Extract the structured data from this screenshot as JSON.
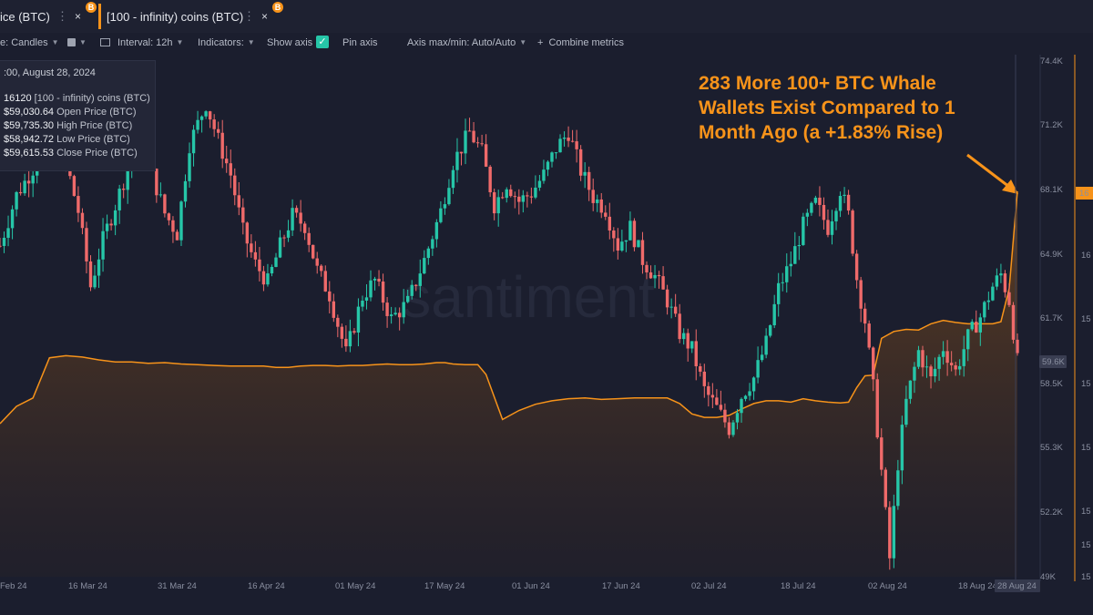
{
  "tabs": [
    {
      "label": "ice (BTC)",
      "dots": "⋮",
      "close": "×",
      "badge": "B"
    },
    {
      "label": "[100 - infinity) coins (BTC)",
      "dots": "⋮",
      "close": "×",
      "badge": "B"
    }
  ],
  "toolbar": {
    "style_label": "e: Candles",
    "interval_label": "Interval: 12h",
    "indicators_label": "Indicators:",
    "show_axis_label": "Show axis",
    "pin_axis_label": "Pin axis",
    "axis_maxmin_label": "Axis max/min: Auto/Auto",
    "combine_label": "Combine metrics",
    "checkmark": "✓"
  },
  "tooltip": {
    "date": ":00, August 28, 2024",
    "rows": [
      {
        "value": "16120",
        "label": "[100 - infinity) coins (BTC)"
      },
      {
        "value": "$59,030.64",
        "label": "Open Price (BTC)"
      },
      {
        "value": "$59,735.30",
        "label": "High Price (BTC)"
      },
      {
        "value": "$58,942.72",
        "label": "Low Price (BTC)"
      },
      {
        "value": "$59,615.53",
        "label": "Close Price (BTC)"
      }
    ]
  },
  "annotation": {
    "lines": [
      "283 More 100+ BTC Whale",
      "Wallets Exist Compared to 1",
      "Month Ago (a +1.83% Rise)"
    ]
  },
  "watermark": "santiment",
  "chart_data": {
    "type": "candlestick+area",
    "title": "",
    "x_ticks": [
      "Feb 24",
      "16 Mar 24",
      "31 Mar 24",
      "16 Apr 24",
      "01 May 24",
      "17 May 24",
      "01 Jun 24",
      "17 Jun 24",
      "02 Jul 24",
      "18 Jul 24",
      "02 Aug 24",
      "18 Aug 24",
      "28 Aug 24"
    ],
    "price_axis": {
      "ticks": [
        "74.4K",
        "71.2K",
        "68.1K",
        "64.9K",
        "61.7K",
        "58.5K",
        "55.3K",
        "52.2K",
        "49K"
      ],
      "range": [
        49000,
        74400
      ],
      "current_label": "59.6K"
    },
    "holders_axis": {
      "ticks": [
        "16",
        "15",
        "15",
        "15",
        "15",
        "15",
        "15",
        "15"
      ],
      "current_label": "16"
    },
    "series": [
      {
        "name": "Price (BTC)",
        "type": "candlestick",
        "colors": {
          "up": "#26c6a8",
          "down": "#ef6a6a"
        },
        "close_path": [
          [
            0,
            65300
          ],
          [
            4,
            67800
          ],
          [
            8,
            69100
          ],
          [
            12,
            71000
          ],
          [
            16,
            69400
          ],
          [
            19,
            67000
          ],
          [
            22,
            63300
          ],
          [
            25,
            65600
          ],
          [
            28,
            67300
          ],
          [
            31,
            69100
          ],
          [
            34,
            70600
          ],
          [
            37,
            68800
          ],
          [
            40,
            66900
          ],
          [
            43,
            65900
          ],
          [
            46,
            70300
          ],
          [
            50,
            72300
          ],
          [
            53,
            70500
          ],
          [
            56,
            68800
          ],
          [
            59,
            66000
          ],
          [
            62,
            64400
          ],
          [
            65,
            63500
          ],
          [
            68,
            65300
          ],
          [
            71,
            66800
          ],
          [
            74,
            66300
          ],
          [
            77,
            64100
          ],
          [
            80,
            62900
          ],
          [
            84,
            60000
          ],
          [
            88,
            62800
          ],
          [
            91,
            63600
          ],
          [
            95,
            61700
          ],
          [
            99,
            62500
          ],
          [
            103,
            64600
          ],
          [
            107,
            67000
          ],
          [
            110,
            69400
          ],
          [
            114,
            70900
          ],
          [
            117,
            69900
          ],
          [
            120,
            67300
          ],
          [
            123,
            68400
          ],
          [
            126,
            67500
          ],
          [
            129,
            67900
          ],
          [
            132,
            68800
          ],
          [
            135,
            70100
          ],
          [
            138,
            70900
          ],
          [
            141,
            69000
          ],
          [
            144,
            67700
          ],
          [
            147,
            67100
          ],
          [
            150,
            65300
          ],
          [
            153,
            66200
          ],
          [
            156,
            64600
          ],
          [
            159,
            63800
          ],
          [
            162,
            62600
          ],
          [
            165,
            61000
          ],
          [
            168,
            60200
          ],
          [
            171,
            58200
          ],
          [
            174,
            57300
          ],
          [
            177,
            56300
          ],
          [
            180,
            57900
          ],
          [
            183,
            58800
          ],
          [
            186,
            60500
          ],
          [
            189,
            63200
          ],
          [
            192,
            64500
          ],
          [
            195,
            66300
          ],
          [
            198,
            67400
          ],
          [
            201,
            66200
          ],
          [
            204,
            68100
          ],
          [
            206,
            66800
          ],
          [
            208,
            63700
          ],
          [
            210,
            61600
          ],
          [
            212,
            58300
          ],
          [
            214,
            54200
          ],
          [
            216,
            49900
          ],
          [
            218,
            54600
          ],
          [
            220,
            57600
          ],
          [
            223,
            60100
          ],
          [
            226,
            58700
          ],
          [
            229,
            60300
          ],
          [
            232,
            59100
          ],
          [
            235,
            60800
          ],
          [
            238,
            61800
          ],
          [
            241,
            63300
          ],
          [
            243,
            63900
          ],
          [
            245,
            62600
          ],
          [
            247,
            59600
          ]
        ]
      },
      {
        "name": "[100 - infinity) coins (BTC)",
        "type": "area",
        "color": "#f7931a",
        "close_path": [
          [
            0,
            15785
          ],
          [
            4,
            15810
          ],
          [
            8,
            15822
          ],
          [
            12,
            15880
          ],
          [
            16,
            15883
          ],
          [
            20,
            15881
          ],
          [
            24,
            15877
          ],
          [
            28,
            15874
          ],
          [
            32,
            15874
          ],
          [
            36,
            15872
          ],
          [
            40,
            15873
          ],
          [
            44,
            15871
          ],
          [
            48,
            15870
          ],
          [
            52,
            15869
          ],
          [
            56,
            15868
          ],
          [
            60,
            15868
          ],
          [
            64,
            15868
          ],
          [
            67,
            15866
          ],
          [
            70,
            15866
          ],
          [
            73,
            15868
          ],
          [
            76,
            15869
          ],
          [
            79,
            15869
          ],
          [
            82,
            15868
          ],
          [
            85,
            15869
          ],
          [
            88,
            15869
          ],
          [
            91,
            15870
          ],
          [
            94,
            15871
          ],
          [
            97,
            15870
          ],
          [
            100,
            15870
          ],
          [
            103,
            15871
          ],
          [
            106,
            15873
          ],
          [
            108,
            15873
          ],
          [
            110,
            15871
          ],
          [
            113,
            15870
          ],
          [
            116,
            15870
          ],
          [
            118,
            15856
          ],
          [
            122,
            15791
          ],
          [
            126,
            15804
          ],
          [
            130,
            15813
          ],
          [
            134,
            15818
          ],
          [
            138,
            15821
          ],
          [
            142,
            15822
          ],
          [
            146,
            15820
          ],
          [
            150,
            15821
          ],
          [
            154,
            15822
          ],
          [
            158,
            15822
          ],
          [
            162,
            15822
          ],
          [
            165,
            15814
          ],
          [
            168,
            15799
          ],
          [
            171,
            15794
          ],
          [
            174,
            15794
          ],
          [
            177,
            15797
          ],
          [
            180,
            15806
          ],
          [
            183,
            15814
          ],
          [
            186,
            15818
          ],
          [
            189,
            15818
          ],
          [
            192,
            15816
          ],
          [
            195,
            15821
          ],
          [
            198,
            15818
          ],
          [
            201,
            15816
          ],
          [
            204,
            15815
          ],
          [
            206,
            15816
          ],
          [
            208,
            15837
          ],
          [
            210,
            15854
          ],
          [
            212,
            15855
          ],
          [
            214,
            15908
          ],
          [
            217,
            15918
          ],
          [
            220,
            15921
          ],
          [
            223,
            15920
          ],
          [
            226,
            15929
          ],
          [
            229,
            15934
          ],
          [
            232,
            15931
          ],
          [
            235,
            15929
          ],
          [
            238,
            15929
          ],
          [
            241,
            15929
          ],
          [
            243,
            15932
          ],
          [
            245,
            15980
          ],
          [
            247,
            16120
          ]
        ]
      }
    ],
    "axis_range_x": [
      0,
      247
    ],
    "grid": false,
    "legend": "none"
  }
}
